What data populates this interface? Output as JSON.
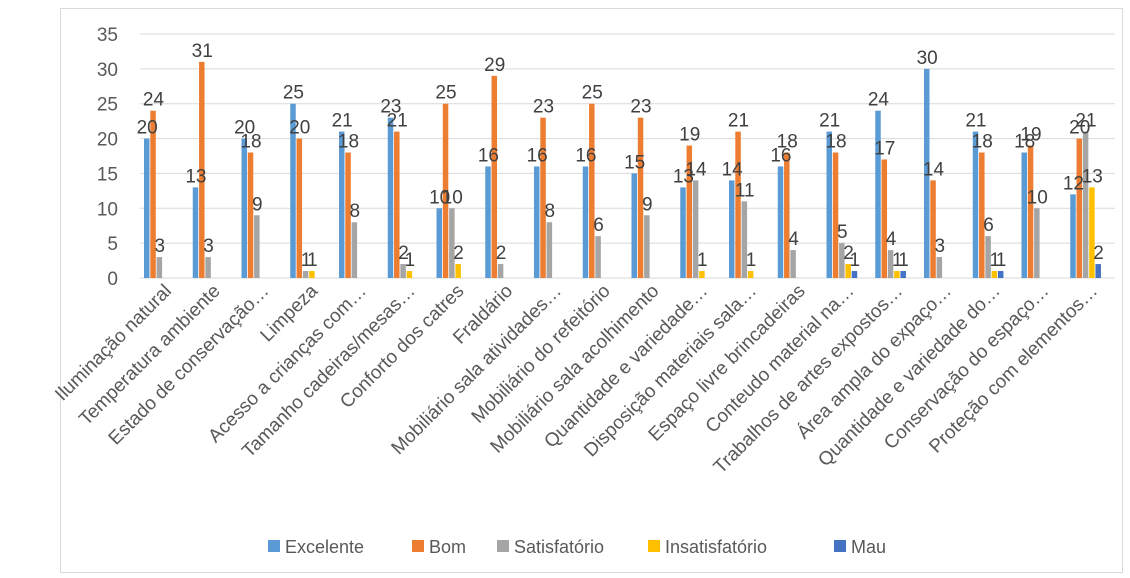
{
  "chart_data": {
    "type": "bar",
    "ylim": [
      0,
      35
    ],
    "yticks": [
      0,
      5,
      10,
      15,
      20,
      25,
      30,
      35
    ],
    "grid": true,
    "legend_position": "bottom",
    "categories": [
      "Iluminação natural",
      "Temperatura ambiente",
      "Estado de conservação…",
      "Limpeza",
      "Acesso a crianças com…",
      "Tamanho cadeiras/mesas…",
      "Conforto dos catres",
      "Fraldário",
      "Mobiliário sala atividades…",
      "Mobiliário do refeitório",
      "Mobiliário sala acolhimento",
      "Quantidade e variedade…",
      "Disposição materiais sala…",
      "Espaço livre brincadeiras",
      "Conteudo material na…",
      "Trabalhos de artes expostos…",
      "Área ampla do expaço…",
      "Quantidade e variedade do…",
      "Conservação do espaço…",
      "Proteção com elementos…"
    ],
    "series": [
      {
        "name": "Excelente",
        "color": "#5b9bd5",
        "values": [
          20,
          13,
          20,
          25,
          21,
          23,
          10,
          16,
          16,
          16,
          15,
          13,
          14,
          16,
          21,
          24,
          30,
          21,
          18,
          12
        ]
      },
      {
        "name": "Bom",
        "color": "#ed7d31",
        "values": [
          24,
          31,
          18,
          20,
          18,
          21,
          25,
          29,
          23,
          25,
          23,
          19,
          21,
          18,
          18,
          17,
          14,
          18,
          19,
          20
        ]
      },
      {
        "name": "Satisfatório",
        "color": "#a5a5a5",
        "values": [
          3,
          3,
          9,
          1,
          8,
          2,
          10,
          2,
          8,
          6,
          9,
          14,
          11,
          4,
          5,
          4,
          3,
          6,
          10,
          21
        ]
      },
      {
        "name": "Insatisfatório",
        "color": "#ffc000",
        "values": [
          0,
          0,
          0,
          1,
          0,
          1,
          2,
          0,
          0,
          0,
          0,
          1,
          1,
          0,
          2,
          1,
          0,
          1,
          0,
          13
        ]
      },
      {
        "name": "Mau",
        "color": "#4472c4",
        "values": [
          0,
          0,
          0,
          0,
          0,
          0,
          0,
          0,
          0,
          0,
          0,
          0,
          0,
          0,
          1,
          1,
          0,
          1,
          0,
          2
        ]
      }
    ]
  }
}
